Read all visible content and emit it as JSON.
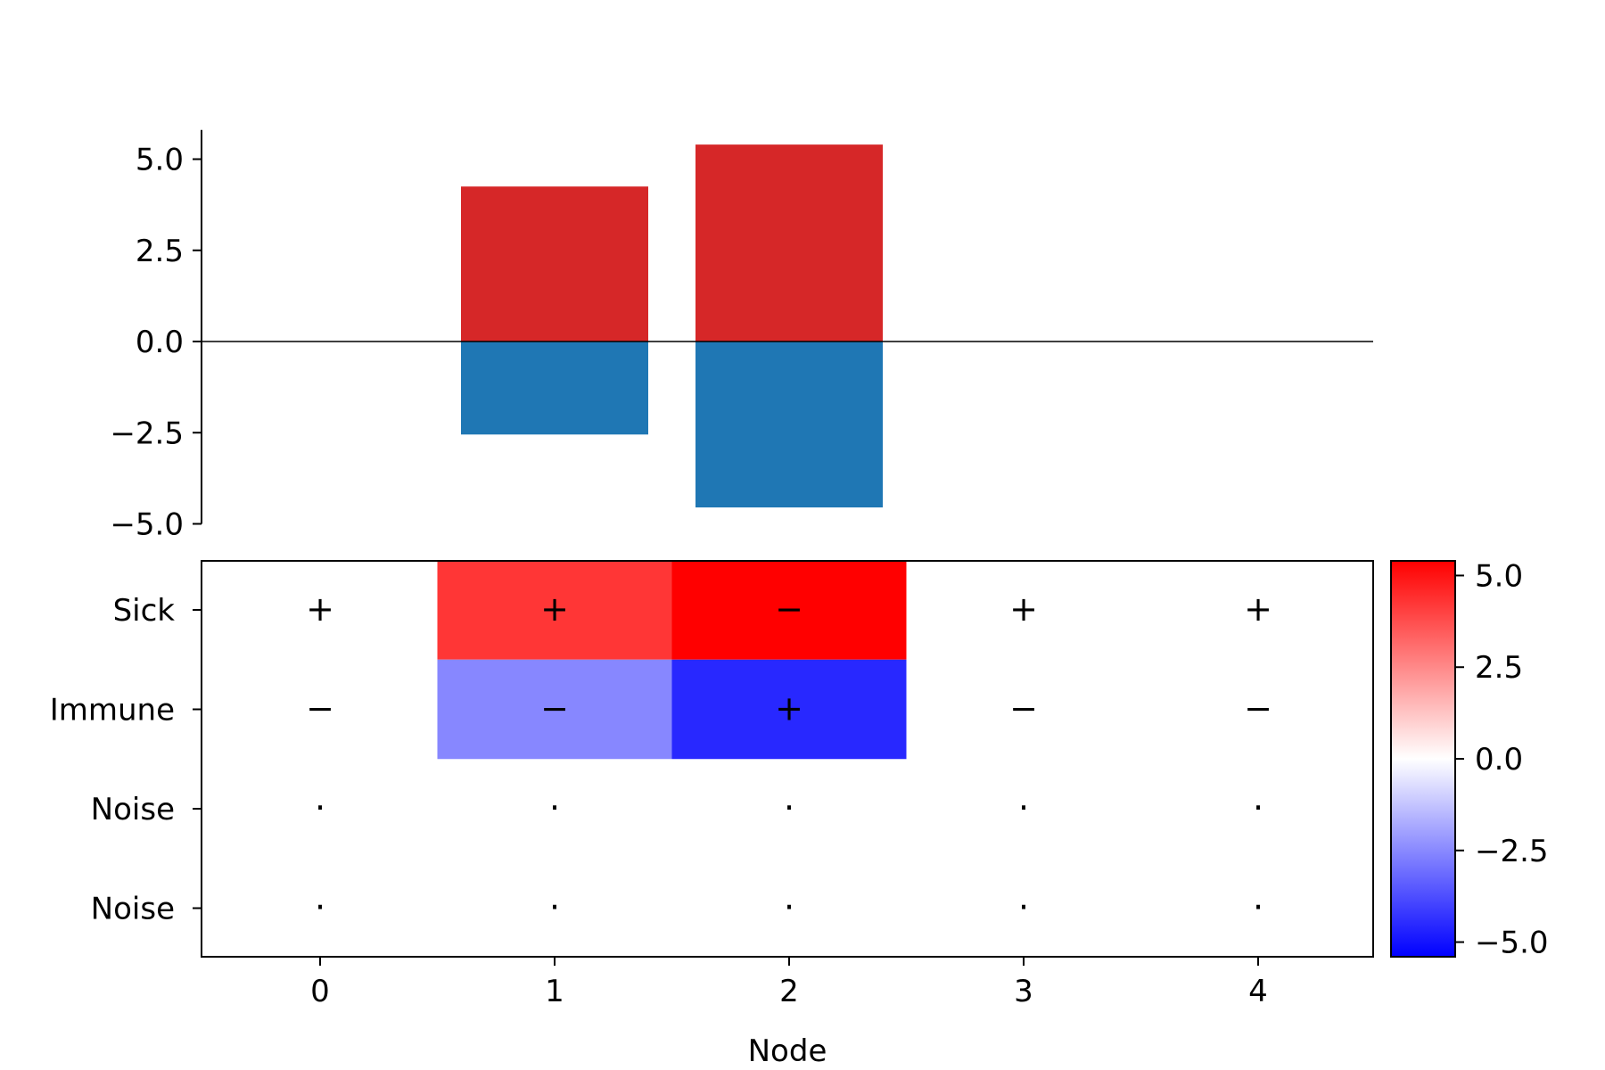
{
  "chart_data": [
    {
      "type": "bar",
      "title": "",
      "xlabel": "",
      "ylabel": "",
      "ylim": [
        -5.0,
        5.8
      ],
      "yticks": [
        -5.0,
        -2.5,
        0.0,
        2.5,
        5.0
      ],
      "ytick_labels": [
        "−5.0",
        "−2.5",
        "0.0",
        "2.5",
        "5.0"
      ],
      "categories": [
        0,
        1,
        2,
        3,
        4
      ],
      "series": [
        {
          "values": [
            0,
            4.25,
            5.4,
            0,
            0
          ],
          "color": "#d62728"
        },
        {
          "values": [
            0,
            -2.55,
            -4.55,
            0,
            0
          ],
          "color": "#1f77b4"
        }
      ],
      "zero_line": true,
      "grid": false
    },
    {
      "type": "heatmap",
      "title": "",
      "xlabel": "Node",
      "ylabel": "",
      "x_categories": [
        "0",
        "1",
        "2",
        "3",
        "4"
      ],
      "y_categories": [
        "Sick",
        "Immune",
        "Noise",
        "Noise"
      ],
      "values": [
        [
          0,
          4.25,
          5.4,
          0,
          0
        ],
        [
          0,
          -2.55,
          -4.55,
          0,
          0
        ],
        [
          0,
          0,
          0,
          0,
          0
        ],
        [
          0,
          0,
          0,
          0,
          0
        ]
      ],
      "symbols": [
        [
          "+",
          "+",
          "−",
          "+",
          "+"
        ],
        [
          "−",
          "−",
          "+",
          "−",
          "−"
        ],
        [
          "·",
          "·",
          "·",
          "·",
          "·"
        ],
        [
          "·",
          "·",
          "·",
          "·",
          "·"
        ]
      ],
      "colormap": "bwr",
      "colorbar": {
        "range": [
          -5.4,
          5.4
        ],
        "ticks": [
          -5.0,
          -2.5,
          0.0,
          2.5,
          5.0
        ],
        "tick_labels": [
          "−5.0",
          "−2.5",
          "0.0",
          "2.5",
          "5.0"
        ]
      }
    }
  ]
}
